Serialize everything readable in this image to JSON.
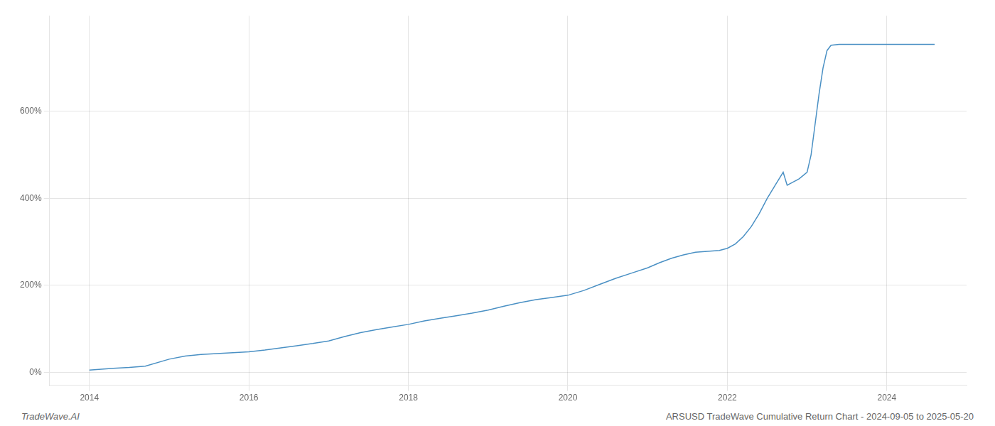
{
  "chart_data": {
    "type": "line",
    "title": "ARSUSD TradeWave Cumulative Return Chart - 2024-09-05 to 2025-05-20",
    "annotations": [
      "TradeWave.AI"
    ],
    "color": "#4a90c4",
    "grid": true,
    "x": [
      2014.0,
      2014.15,
      2014.3,
      2014.5,
      2014.7,
      2015.0,
      2015.2,
      2015.4,
      2015.6,
      2015.8,
      2016.0,
      2016.2,
      2016.4,
      2016.6,
      2016.8,
      2017.0,
      2017.2,
      2017.4,
      2017.6,
      2017.8,
      2018.0,
      2018.2,
      2018.4,
      2018.6,
      2018.8,
      2019.0,
      2019.2,
      2019.4,
      2019.6,
      2019.8,
      2020.0,
      2020.2,
      2020.4,
      2020.6,
      2020.8,
      2021.0,
      2021.15,
      2021.3,
      2021.45,
      2021.6,
      2021.75,
      2021.9,
      2022.0,
      2022.1,
      2022.2,
      2022.3,
      2022.4,
      2022.5,
      2022.6,
      2022.7,
      2022.75,
      2022.8,
      2022.85,
      2022.9,
      2023.0,
      2023.05,
      2023.1,
      2023.15,
      2023.2,
      2023.25,
      2023.3,
      2023.4,
      2023.5,
      2023.6,
      2023.7,
      2023.8,
      2023.9,
      2024.0,
      2024.1,
      2024.2,
      2024.3,
      2024.4,
      2024.5,
      2024.6
    ],
    "values": [
      5,
      7,
      9,
      11,
      14,
      30,
      37,
      41,
      43,
      45,
      47,
      51,
      56,
      61,
      66,
      72,
      82,
      91,
      98,
      104,
      110,
      118,
      124,
      130,
      136,
      143,
      152,
      160,
      167,
      172,
      177,
      188,
      202,
      216,
      228,
      240,
      252,
      262,
      270,
      276,
      278,
      280,
      285,
      295,
      312,
      335,
      365,
      400,
      430,
      460,
      430,
      435,
      440,
      445,
      460,
      500,
      570,
      640,
      700,
      740,
      752,
      754,
      754,
      754,
      754,
      754,
      754,
      754,
      754,
      754,
      754,
      754,
      754,
      754
    ],
    "xlim": [
      2013.5,
      2025.0
    ],
    "xticks": [
      2014,
      2016,
      2018,
      2020,
      2022,
      2024
    ],
    "ylim": [
      -30,
      820
    ],
    "yticks": [
      {
        "value": 0,
        "label": "0%"
      },
      {
        "value": 200,
        "label": "200%"
      },
      {
        "value": 400,
        "label": "400%"
      },
      {
        "value": 600,
        "label": "600%"
      }
    ]
  }
}
